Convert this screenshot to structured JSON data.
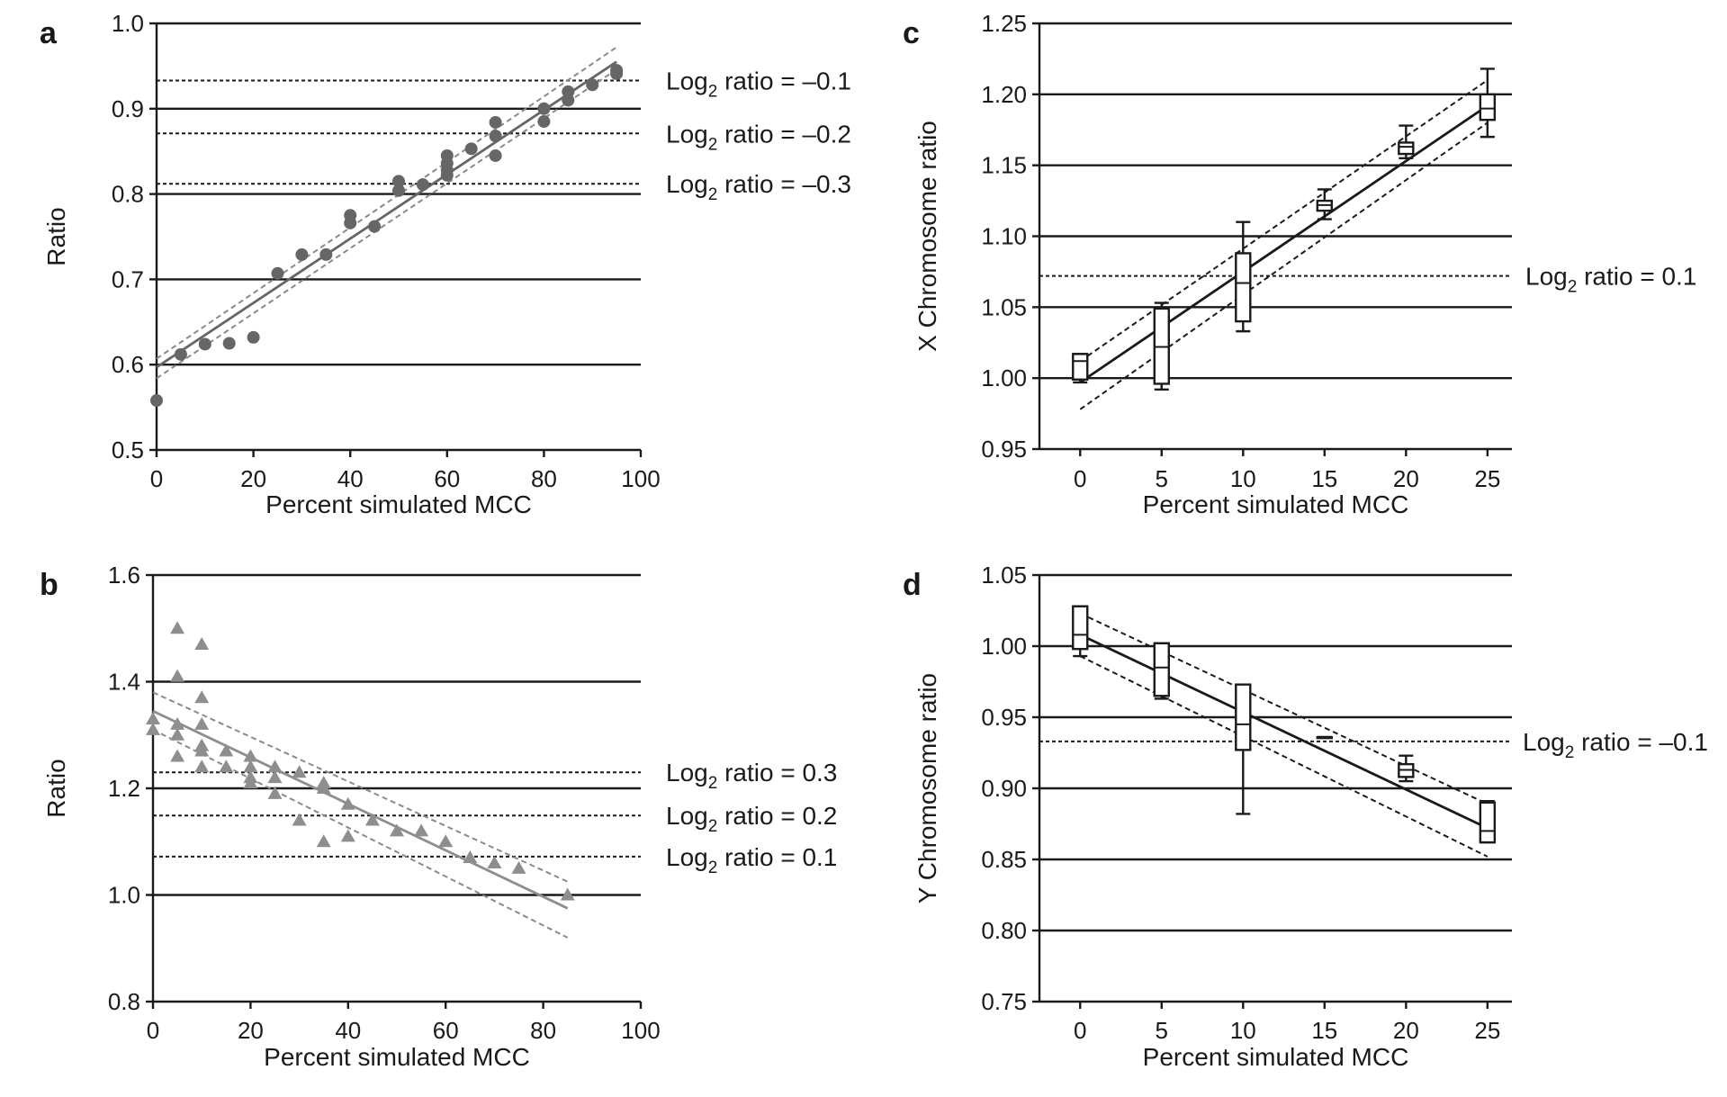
{
  "colors": {
    "axis": "#1a1a1a",
    "grid": "#1a1a1a",
    "gray_dark": "#666666",
    "gray_light": "#8e8e8e",
    "dashed_gray": "#8a8a8a"
  },
  "chart_data": [
    {
      "panel": "a",
      "type": "scatter",
      "marker": "circle",
      "xlabel": "Percent simulated MCC",
      "ylabel": "Ratio",
      "xlim": [
        0,
        100
      ],
      "ylim": [
        0.5,
        1.0
      ],
      "xticks": [
        "0",
        "20",
        "40",
        "60",
        "80",
        "100"
      ],
      "yticks": [
        "0.5",
        "0.6",
        "0.7",
        "0.8",
        "0.9",
        "1.0"
      ],
      "grid": "horizontal",
      "points": [
        [
          0,
          0.558
        ],
        [
          5,
          0.612
        ],
        [
          10,
          0.624
        ],
        [
          15,
          0.625
        ],
        [
          20,
          0.632
        ],
        [
          25,
          0.707
        ],
        [
          30,
          0.729
        ],
        [
          35,
          0.729
        ],
        [
          40,
          0.766
        ],
        [
          40,
          0.775
        ],
        [
          45,
          0.762
        ],
        [
          50,
          0.804
        ],
        [
          50,
          0.815
        ],
        [
          55,
          0.811
        ],
        [
          60,
          0.822
        ],
        [
          60,
          0.828
        ],
        [
          60,
          0.836
        ],
        [
          60,
          0.845
        ],
        [
          65,
          0.853
        ],
        [
          70,
          0.845
        ],
        [
          70,
          0.868
        ],
        [
          70,
          0.884
        ],
        [
          80,
          0.885
        ],
        [
          80,
          0.9
        ],
        [
          85,
          0.91
        ],
        [
          85,
          0.92
        ],
        [
          90,
          0.928
        ],
        [
          95,
          0.941
        ],
        [
          95,
          0.945
        ]
      ],
      "fit_line": [
        [
          0,
          0.597
        ],
        [
          95,
          0.955
        ]
      ],
      "ci_upper": [
        [
          0,
          0.607
        ],
        [
          95,
          0.972
        ]
      ],
      "ci_lower": [
        [
          0,
          0.584
        ],
        [
          95,
          0.946
        ]
      ],
      "reference_lines": [
        {
          "y": 0.933,
          "label_prefix": "Log",
          "label_sub": "2",
          "label_suffix": " ratio = –0.1"
        },
        {
          "y": 0.871,
          "label_prefix": "Log",
          "label_sub": "2",
          "label_suffix": " ratio = –0.2"
        },
        {
          "y": 0.812,
          "label_prefix": "Log",
          "label_sub": "2",
          "label_suffix": " ratio = –0.3"
        }
      ]
    },
    {
      "panel": "b",
      "type": "scatter",
      "marker": "triangle",
      "xlabel": "Percent simulated MCC",
      "ylabel": "Ratio",
      "xlim": [
        0,
        100
      ],
      "ylim": [
        0.8,
        1.6
      ],
      "xticks": [
        "0",
        "20",
        "40",
        "60",
        "80",
        "100"
      ],
      "yticks": [
        "0.8",
        "1.0",
        "1.2",
        "1.4",
        "1.6"
      ],
      "grid": "horizontal",
      "points": [
        [
          0,
          1.31
        ],
        [
          0,
          1.33
        ],
        [
          5,
          1.5
        ],
        [
          5,
          1.41
        ],
        [
          5,
          1.32
        ],
        [
          5,
          1.3
        ],
        [
          5,
          1.26
        ],
        [
          10,
          1.47
        ],
        [
          10,
          1.37
        ],
        [
          10,
          1.32
        ],
        [
          10,
          1.28
        ],
        [
          10,
          1.27
        ],
        [
          10,
          1.24
        ],
        [
          15,
          1.27
        ],
        [
          15,
          1.24
        ],
        [
          20,
          1.26
        ],
        [
          20,
          1.24
        ],
        [
          20,
          1.22
        ],
        [
          20,
          1.21
        ],
        [
          25,
          1.24
        ],
        [
          25,
          1.22
        ],
        [
          25,
          1.19
        ],
        [
          30,
          1.23
        ],
        [
          30,
          1.14
        ],
        [
          35,
          1.21
        ],
        [
          35,
          1.2
        ],
        [
          35,
          1.1
        ],
        [
          40,
          1.17
        ],
        [
          40,
          1.11
        ],
        [
          45,
          1.14
        ],
        [
          50,
          1.12
        ],
        [
          55,
          1.12
        ],
        [
          60,
          1.1
        ],
        [
          65,
          1.07
        ],
        [
          70,
          1.06
        ],
        [
          75,
          1.05
        ],
        [
          85,
          1.0
        ]
      ],
      "fit_line": [
        [
          0,
          1.345
        ],
        [
          85,
          0.975
        ]
      ],
      "ci_upper": [
        [
          0,
          1.38
        ],
        [
          85,
          1.025
        ]
      ],
      "ci_lower": [
        [
          0,
          1.31
        ],
        [
          85,
          0.92
        ]
      ],
      "reference_lines": [
        {
          "y": 1.23,
          "label_prefix": "Log",
          "label_sub": "2",
          "label_suffix": " ratio = 0.3"
        },
        {
          "y": 1.149,
          "label_prefix": "Log",
          "label_sub": "2",
          "label_suffix": " ratio = 0.2"
        },
        {
          "y": 1.072,
          "label_prefix": "Log",
          "label_sub": "2",
          "label_suffix": " ratio = 0.1"
        }
      ]
    },
    {
      "panel": "c",
      "type": "box",
      "xlabel": "Percent simulated MCC",
      "ylabel": "X Chromosome ratio",
      "xlim": [
        -2.5,
        26.5
      ],
      "ylim": [
        0.95,
        1.25
      ],
      "xticks": [
        "0",
        "5",
        "10",
        "15",
        "20",
        "25"
      ],
      "yticks": [
        "0.95",
        "1.00",
        "1.05",
        "1.10",
        "1.15",
        "1.20",
        "1.25"
      ],
      "grid": "horizontal",
      "boxes": [
        {
          "x": 0,
          "min": 0.997,
          "q1": 0.999,
          "median": 1.012,
          "q3": 1.017,
          "max": 1.017
        },
        {
          "x": 5,
          "min": 0.992,
          "q1": 0.996,
          "median": 1.022,
          "q3": 1.049,
          "max": 1.053
        },
        {
          "x": 10,
          "min": 1.033,
          "q1": 1.04,
          "median": 1.067,
          "q3": 1.088,
          "max": 1.11
        },
        {
          "x": 15,
          "min": 1.112,
          "q1": 1.118,
          "median": 1.122,
          "q3": 1.125,
          "max": 1.133
        },
        {
          "x": 20,
          "min": 1.155,
          "q1": 1.158,
          "median": 1.163,
          "q3": 1.166,
          "max": 1.178
        },
        {
          "x": 25,
          "min": 1.17,
          "q1": 1.182,
          "median": 1.19,
          "q3": 1.2,
          "max": 1.218
        }
      ],
      "fit_line": [
        [
          0,
          0.997
        ],
        [
          25,
          1.192
        ]
      ],
      "ci_upper": [
        [
          0,
          1.012
        ],
        [
          25,
          1.21
        ]
      ],
      "ci_lower": [
        [
          0,
          0.978
        ],
        [
          25,
          1.18
        ]
      ],
      "reference_lines": [
        {
          "y": 1.072,
          "label_prefix": "Log",
          "label_sub": "2",
          "label_suffix": " ratio = 0.1"
        }
      ]
    },
    {
      "panel": "d",
      "type": "box",
      "xlabel": "Percent simulated MCC",
      "ylabel": "Y Chromosome ratio",
      "xlim": [
        -2.5,
        26.5
      ],
      "ylim": [
        0.75,
        1.05
      ],
      "xticks": [
        "0",
        "5",
        "10",
        "15",
        "20",
        "25"
      ],
      "yticks": [
        "0.75",
        "0.80",
        "0.85",
        "0.90",
        "0.95",
        "1.00",
        "1.05"
      ],
      "grid": "horizontal",
      "boxes": [
        {
          "x": 0,
          "min": 0.993,
          "q1": 0.998,
          "median": 1.008,
          "q3": 1.028,
          "max": 1.028
        },
        {
          "x": 5,
          "min": 0.963,
          "q1": 0.965,
          "median": 0.985,
          "q3": 1.002,
          "max": 1.002
        },
        {
          "x": 10,
          "min": 0.882,
          "q1": 0.927,
          "median": 0.945,
          "q3": 0.973,
          "max": 0.973
        },
        {
          "x": 15,
          "min": 0.936,
          "q1": 0.936,
          "median": 0.936,
          "q3": 0.936,
          "max": 0.936
        },
        {
          "x": 20,
          "min": 0.905,
          "q1": 0.908,
          "median": 0.913,
          "q3": 0.917,
          "max": 0.923
        },
        {
          "x": 25,
          "min": 0.862,
          "q1": 0.862,
          "median": 0.87,
          "q3": 0.89,
          "max": 0.891
        }
      ],
      "fit_line": [
        [
          0,
          1.008
        ],
        [
          25,
          0.872
        ]
      ],
      "ci_upper": [
        [
          0,
          1.023
        ],
        [
          25,
          0.889
        ]
      ],
      "ci_lower": [
        [
          0,
          0.993
        ],
        [
          25,
          0.852
        ]
      ],
      "reference_lines": [
        {
          "y": 0.933,
          "label_prefix": "Log",
          "label_sub": "2",
          "label_suffix": " ratio = –0.1"
        }
      ]
    }
  ]
}
